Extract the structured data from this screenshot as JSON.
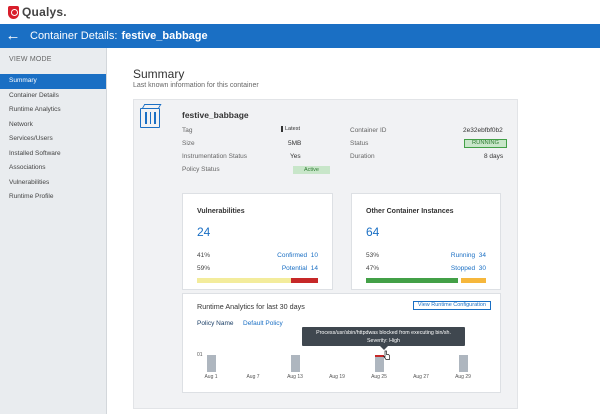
{
  "app": {
    "logo_text": "Qualys."
  },
  "header": {
    "back_icon": "arrow-left-icon",
    "title_prefix": "Container Details:",
    "title_name": "festive_babbage"
  },
  "sidebar": {
    "section_label": "VIEW MODE",
    "items": [
      {
        "label": "Summary",
        "active": true
      },
      {
        "label": "Container Details"
      },
      {
        "label": "Runtime Analytics"
      },
      {
        "label": "Network"
      },
      {
        "label": "Services/Users"
      },
      {
        "label": "Installed Software"
      },
      {
        "label": "Associations"
      },
      {
        "label": "Vulnerabilities"
      },
      {
        "label": "Runtime Profile"
      }
    ]
  },
  "summary": {
    "title": "Summary",
    "subtitle": "Last known information for this container",
    "container_name": "festive_babbage",
    "tag_label": "Tag",
    "tag_value": "Latest",
    "size_label": "Size",
    "size_value": "5MB",
    "instr_label": "Instrumentation Status",
    "instr_value": "Yes",
    "policy_label": "Policy Status",
    "policy_value": "Active",
    "cid_label": "Container ID",
    "cid_value": "2e32ebfbf0b2",
    "status_label": "Status",
    "status_value": "RUNNING",
    "duration_label": "Duration",
    "duration_value": "8 days"
  },
  "vulns": {
    "title": "Vulnerabilities",
    "total": "24",
    "confirmed_pct": "41%",
    "confirmed_label": "Confirmed",
    "confirmed_count": "10",
    "potential_pct": "59%",
    "potential_label": "Potential",
    "potential_count": "14",
    "colors": {
      "confirmed": "#f3ec9c",
      "potential": "#c62828"
    }
  },
  "instances": {
    "title": "Other Container Instances",
    "total": "64",
    "running_pct": "53%",
    "running_label": "Running",
    "running_count": "34",
    "stopped_pct": "47%",
    "stopped_label": "Stopped",
    "stopped_count": "30",
    "colors": {
      "running": "#43a047",
      "stopped": "#f6b73c"
    }
  },
  "runtime": {
    "title": "Runtime Analytics for last 30 days",
    "button_label": "View Runtime Configuration",
    "policy_label": "Policy Name",
    "policy_value": "Default Policy",
    "y_label": "01",
    "tooltip_line1": "Process/usr/sbin/httpdwas blocked from executing bin/sh.",
    "tooltip_line2": "Severity: High"
  },
  "chart_data": {
    "type": "bar",
    "categories": [
      "Aug 1",
      "Aug 7",
      "Aug 13",
      "Aug 19",
      "Aug 25",
      "Aug 27",
      "Aug 29"
    ],
    "bars": [
      "Aug 1",
      "Aug 13",
      "Aug 25",
      "Aug 29"
    ],
    "values": [
      1,
      0,
      1,
      0,
      1,
      0,
      1
    ],
    "ylim": [
      0,
      1
    ],
    "bar_color": "#aeb6bf",
    "highlight_color": "#c62828"
  }
}
